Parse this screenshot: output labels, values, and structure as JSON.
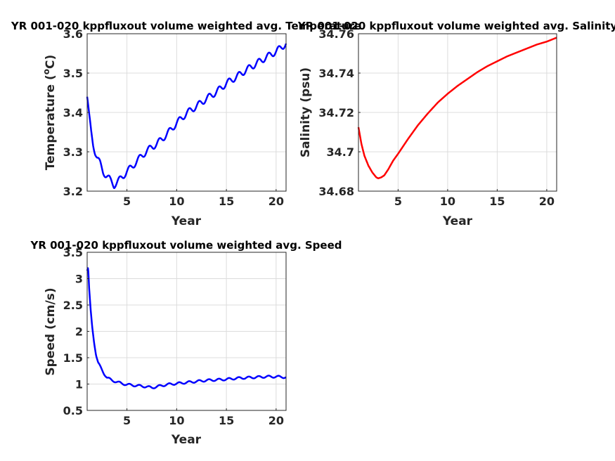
{
  "chart_data": [
    {
      "id": "temperature",
      "type": "line",
      "title": "YR 001-020 kppfluxout volume weighted avg. Temperature",
      "xlabel": "Year",
      "ylabel": "Temperature (°C)",
      "ylabel_parts": [
        "Temperature (",
        "o",
        "C)"
      ],
      "xlim": [
        1,
        21
      ],
      "ylim": [
        3.2,
        3.6
      ],
      "xticks": [
        5,
        10,
        15,
        20
      ],
      "yticks": [
        3.2,
        3.3,
        3.4,
        3.5,
        3.6
      ],
      "ytick_labels": [
        "3.2",
        "3.3",
        "3.4",
        "3.5",
        "3.6"
      ],
      "grid": true,
      "color": "#0000ff",
      "x": [
        1.0,
        1.2,
        1.4,
        1.6,
        1.8,
        2.0,
        2.3,
        2.6,
        2.9,
        3.2,
        3.5,
        3.7,
        4.0,
        4.3,
        4.6,
        5.0,
        5.5,
        6.0,
        6.5,
        7.0,
        7.5,
        8.0,
        9.0,
        10.0,
        11.0,
        12.0,
        13.0,
        14.0,
        15.0,
        16.0,
        17.0,
        18.0,
        19.0,
        20.0,
        21.0
      ],
      "y": [
        3.44,
        3.39,
        3.35,
        3.32,
        3.3,
        3.285,
        3.27,
        3.25,
        3.24,
        3.232,
        3.222,
        3.215,
        3.222,
        3.23,
        3.238,
        3.25,
        3.262,
        3.276,
        3.29,
        3.302,
        3.312,
        3.32,
        3.344,
        3.373,
        3.398,
        3.416,
        3.435,
        3.452,
        3.474,
        3.49,
        3.508,
        3.524,
        3.54,
        3.555,
        3.575
      ],
      "seasonal_amplitude": 0.008
    },
    {
      "id": "salinity",
      "type": "line",
      "title": "YR 001-020 kppfluxout volume weighted avg. Salinity",
      "xlabel": "Year",
      "ylabel": "Salinity (psu)",
      "xlim": [
        1,
        21
      ],
      "ylim": [
        34.68,
        34.76
      ],
      "xticks": [
        5,
        10,
        15,
        20
      ],
      "yticks": [
        34.68,
        34.7,
        34.72,
        34.74,
        34.76
      ],
      "ytick_labels": [
        "34.68",
        "34.7",
        "34.72",
        "34.74",
        "34.76"
      ],
      "grid": true,
      "color": "#ff0000",
      "x": [
        1.0,
        1.3,
        1.6,
        2.0,
        2.4,
        2.8,
        3.0,
        3.3,
        3.6,
        4.0,
        4.5,
        5.0,
        6.0,
        7.0,
        8.0,
        9.0,
        10.0,
        11.0,
        12.0,
        13.0,
        14.0,
        15.0,
        16.0,
        17.0,
        18.0,
        19.0,
        20.0,
        21.0
      ],
      "y": [
        34.7125,
        34.704,
        34.698,
        34.693,
        34.6895,
        34.687,
        34.6865,
        34.687,
        34.688,
        34.691,
        34.6955,
        34.699,
        34.7065,
        34.7135,
        34.7195,
        34.725,
        34.7295,
        34.7335,
        34.737,
        34.7405,
        34.7435,
        34.746,
        34.7485,
        34.7505,
        34.7525,
        34.7545,
        34.756,
        34.758
      ],
      "seasonal_amplitude": 0.0
    },
    {
      "id": "speed",
      "type": "line",
      "title": "YR 001-020 kppfluxout volume weighted avg. Speed",
      "xlabel": "Year",
      "ylabel": "Speed (cm/s)",
      "xlim": [
        1,
        21
      ],
      "ylim": [
        0.5,
        3.5
      ],
      "xticks": [
        5,
        10,
        15,
        20
      ],
      "yticks": [
        0.5,
        1,
        1.5,
        2,
        2.5,
        3,
        3.5
      ],
      "ytick_labels": [
        "0.5",
        "1",
        "1.5",
        "2",
        "2.5",
        "3",
        "3.5"
      ],
      "grid": true,
      "color": "#0000ff",
      "x": [
        1.0,
        1.1,
        1.2,
        1.35,
        1.5,
        1.7,
        1.9,
        2.1,
        2.4,
        2.7,
        3.0,
        3.5,
        4.0,
        4.5,
        5.0,
        6.0,
        7.0,
        7.5,
        8.0,
        9.0,
        10.0,
        11.0,
        12.0,
        13.0,
        14.0,
        15.0,
        16.0,
        17.0,
        18.0,
        19.0,
        20.0,
        21.0
      ],
      "y": [
        3.15,
        3.2,
        2.8,
        2.4,
        2.1,
        1.8,
        1.55,
        1.4,
        1.3,
        1.2,
        1.12,
        1.07,
        1.04,
        1.01,
        0.99,
        0.97,
        0.95,
        0.93,
        0.95,
        0.99,
        1.01,
        1.03,
        1.05,
        1.07,
        1.08,
        1.09,
        1.11,
        1.12,
        1.13,
        1.14,
        1.14,
        1.13
      ],
      "seasonal_amplitude": 0.02
    }
  ]
}
